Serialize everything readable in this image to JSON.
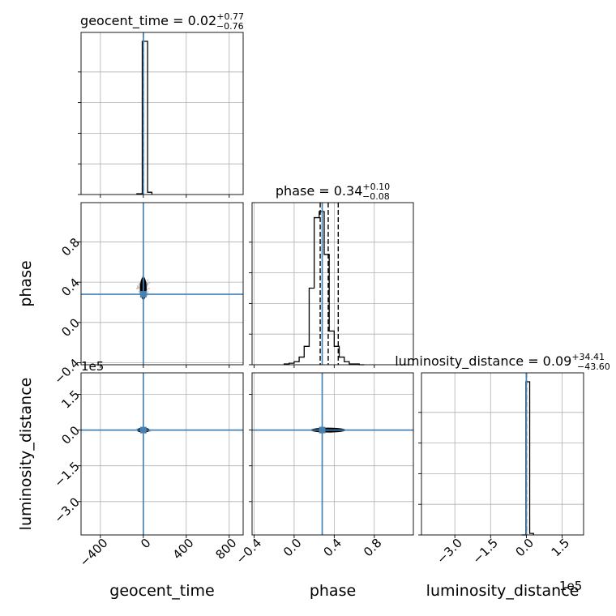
{
  "chart_data": {
    "type": "corner",
    "parameters": [
      {
        "name": "geocent_time",
        "xlabel": "geocent_time",
        "title_base": "geocent_time = 0.02",
        "title_sup": "+0.77",
        "title_sub": "−0.76",
        "median": 0.02,
        "q_low": -0.74,
        "q_high": 0.79,
        "truth": 0.0,
        "range": [
          -580,
          930
        ],
        "ticks": [
          -400,
          0,
          400,
          800
        ],
        "ticklabels": [
          "−400",
          "0",
          "400",
          "800"
        ],
        "offset": ""
      },
      {
        "name": "phase",
        "xlabel": "phase",
        "ylabel": "phase",
        "title_base": "phase = 0.34",
        "title_sup": "+0.10",
        "title_sub": "−0.08",
        "median": 0.34,
        "q_low": 0.26,
        "q_high": 0.44,
        "truth": 0.28,
        "range": [
          -0.42,
          1.19
        ],
        "ticks": [
          -0.4,
          0.0,
          0.4,
          0.8
        ],
        "ticklabels": [
          "−0.4",
          "0.0",
          "0.4",
          "0.8"
        ],
        "offset": ""
      },
      {
        "name": "luminosity_distance",
        "xlabel": "luminosity_distance",
        "ylabel": "luminosity_distance",
        "title_base": "luminosity_distance = 0.09",
        "title_sup": "+34.41",
        "title_sub": "−43.60",
        "median": 0.09,
        "q_low": -43.51,
        "q_high": 34.5,
        "truth": 0.0,
        "range": [
          -440000,
          240000
        ],
        "ticks": [
          -300000,
          -150000,
          0,
          150000
        ],
        "ticklabels": [
          "−3.0",
          "−1.5",
          "0.0",
          "1.5"
        ],
        "offset": "1e5"
      }
    ],
    "hist_geocent_time": {
      "edges": [
        -60,
        -10,
        40,
        80
      ],
      "heights": [
        0.005,
        1.0,
        0.015
      ]
    },
    "hist_phase": {
      "edges": [
        -0.1,
        -0.05,
        0.0,
        0.05,
        0.1,
        0.15,
        0.2,
        0.25,
        0.3,
        0.35,
        0.4,
        0.45,
        0.5,
        0.55,
        0.6,
        0.65,
        0.7
      ],
      "heights": [
        0.005,
        0.01,
        0.02,
        0.05,
        0.12,
        0.5,
        0.96,
        1.0,
        0.72,
        0.22,
        0.12,
        0.05,
        0.02,
        0.005,
        0.005,
        0.0
      ]
    },
    "hist_luminosity_distance": {
      "edges": [
        -20000,
        -2000,
        14000,
        30000
      ],
      "heights": [
        0.0,
        1.0,
        0.01
      ]
    },
    "grid": true
  }
}
